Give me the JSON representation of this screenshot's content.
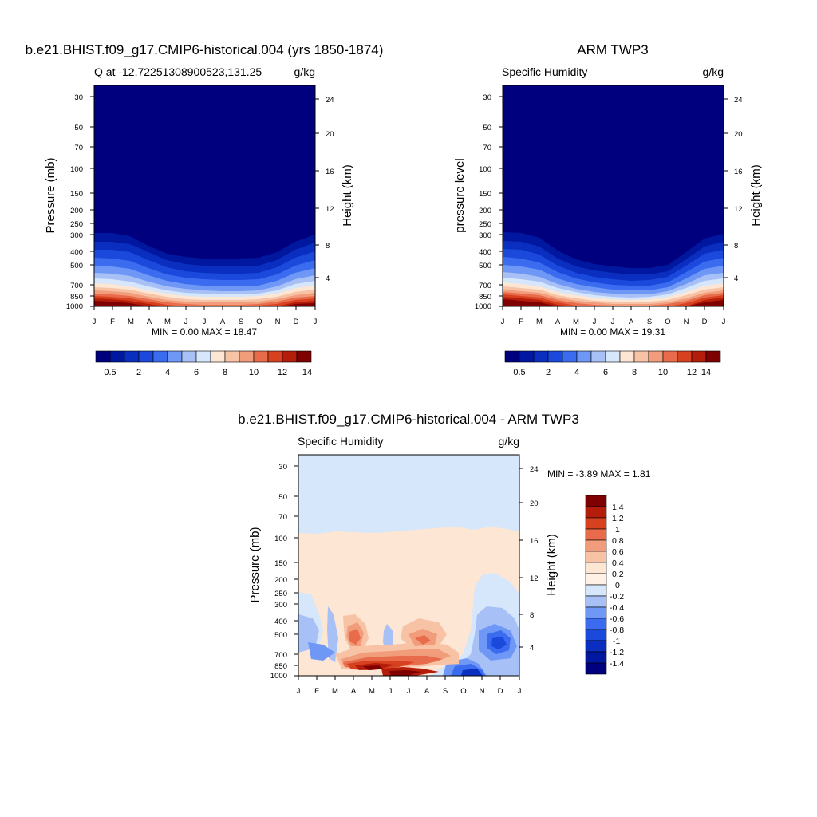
{
  "colors": {
    "levels_top": [
      "#00007f",
      "#0018a0",
      "#0a2fc0",
      "#1a49dc",
      "#3b6cf0",
      "#6f97f5",
      "#a7c1f7",
      "#d6e6fb",
      "#fde6d4",
      "#f8c2a5",
      "#f19c7a",
      "#e86c4b",
      "#d8411f",
      "#b41d0a",
      "#7f0000"
    ],
    "levels_diff": [
      "#00007f",
      "#0018a0",
      "#0a2fc0",
      "#1a49dc",
      "#3b6cf0",
      "#6f97f5",
      "#a7c1f7",
      "#d6e6fb",
      "#fde6d4",
      "#f8c2a5",
      "#f19c7a",
      "#e86c4b",
      "#d8411f",
      "#b41d0a",
      "#7f0000"
    ]
  },
  "chart_data": [
    {
      "type": "heatmap",
      "title": "b.e21.BHIST.f09_g17.CMIP6-historical.004 (yrs 1850-1874)",
      "subtitle_left": "Q at -12.72251308900523,131.25",
      "subtitle_right": "g/kg",
      "ylabel": "Pressure (mb)",
      "ylabel_right": "Height (km)",
      "x_ticks": [
        "J",
        "F",
        "M",
        "A",
        "M",
        "J",
        "J",
        "A",
        "S",
        "O",
        "N",
        "D",
        "J"
      ],
      "y_ticks": [
        "30",
        "50",
        "70",
        "100",
        "150",
        "200",
        "250",
        "300",
        "400",
        "500",
        "700",
        "850",
        "1000"
      ],
      "y_ticks_right": [
        "24",
        "20",
        "16",
        "12",
        "8",
        "4"
      ],
      "ylim": [
        1000,
        25
      ],
      "y_scale": "log",
      "min_max": "MIN =   0.00 MAX =  18.47",
      "colorbar_labels": [
        "0.5",
        "2",
        "4",
        "6",
        "8",
        "10",
        "12",
        "14"
      ],
      "months": [
        "Jan",
        "Feb",
        "Mar",
        "Apr",
        "May",
        "Jun",
        "Jul",
        "Aug",
        "Sep",
        "Oct",
        "Nov",
        "Dec",
        "Jan"
      ],
      "moist_top_mb": [
        290,
        295,
        310,
        360,
        430,
        460,
        470,
        470,
        470,
        440,
        370,
        330,
        290
      ],
      "surface_q_max_gkg": [
        18.4,
        18.4,
        18.2,
        16.5,
        13.0,
        10.5,
        9.6,
        9.5,
        10.0,
        12.5,
        16.0,
        18.0,
        18.4
      ]
    },
    {
      "type": "heatmap",
      "title": "ARM TWP3",
      "subtitle_left": "Specific Humidity",
      "subtitle_right": "g/kg",
      "ylabel": "pressure level",
      "ylabel_right": "Height (km)",
      "x_ticks": [
        "J",
        "F",
        "M",
        "A",
        "M",
        "J",
        "J",
        "A",
        "S",
        "O",
        "N",
        "D",
        "J"
      ],
      "y_ticks": [
        "30",
        "50",
        "70",
        "100",
        "150",
        "200",
        "250",
        "300",
        "400",
        "500",
        "700",
        "850",
        "1000"
      ],
      "y_ticks_right": [
        "24",
        "20",
        "16",
        "12",
        "8",
        "4"
      ],
      "ylim": [
        1000,
        25
      ],
      "y_scale": "log",
      "min_max": "MIN =   0.00 MAX =  19.31",
      "colorbar_labels": [
        "0.5",
        "2",
        "4",
        "6",
        "8",
        "10",
        "12",
        "14"
      ],
      "months": [
        "Jan",
        "Feb",
        "Mar",
        "Apr",
        "May",
        "Jun",
        "Jul",
        "Aug",
        "Sep",
        "Oct",
        "Nov",
        "Dec",
        "Jan"
      ],
      "moist_top_mb": [
        290,
        300,
        320,
        380,
        440,
        490,
        500,
        490,
        500,
        450,
        360,
        310,
        290
      ],
      "surface_q_max_gkg": [
        19.3,
        19.0,
        18.6,
        16.8,
        13.0,
        10.5,
        9.6,
        9.8,
        10.5,
        13.0,
        16.5,
        18.8,
        19.3
      ]
    },
    {
      "type": "heatmap",
      "title": "b.e21.BHIST.f09_g17.CMIP6-historical.004 - ARM TWP3",
      "subtitle_left": "Specific Humidity",
      "subtitle_right": "g/kg",
      "ylabel": "Pressure (mb)",
      "ylabel_right": "Height (km)",
      "x_ticks": [
        "J",
        "F",
        "M",
        "A",
        "M",
        "J",
        "J",
        "A",
        "S",
        "O",
        "N",
        "D",
        "J"
      ],
      "y_ticks": [
        "30",
        "50",
        "70",
        "100",
        "150",
        "200",
        "250",
        "300",
        "400",
        "500",
        "700",
        "850",
        "1000"
      ],
      "y_ticks_right": [
        "24",
        "20",
        "16",
        "12",
        "8",
        "4"
      ],
      "ylim": [
        1000,
        25
      ],
      "y_scale": "log",
      "min_max": "MIN =  -3.89 MAX =   1.81",
      "colorbar_labels": [
        "1.4",
        "1.2",
        "1",
        "0.8",
        "0.6",
        "0.4",
        "0.2",
        "0",
        "-0.2",
        "-0.4",
        "-0.6",
        "-0.8",
        "-1",
        "-1.2",
        "-1.4"
      ],
      "upper_boundary_mb": [
        90,
        92,
        93,
        90,
        90,
        92,
        93,
        95,
        92,
        95,
        90,
        92,
        95
      ]
    }
  ]
}
